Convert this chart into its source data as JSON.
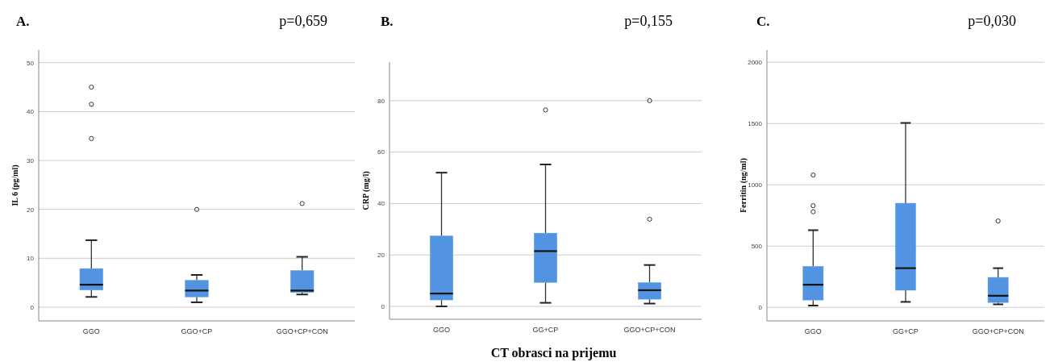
{
  "chart_data": [
    {
      "type": "box",
      "title": "A.",
      "annotations": [
        "p=0,659"
      ],
      "ylabel": "IL 6 (pg/ml)",
      "categories": [
        "GGO",
        "GGO+CP",
        "GGO+CP+CON"
      ],
      "ylim": [
        -2.8,
        52.6
      ],
      "yticks": [
        0,
        10,
        20,
        30,
        40,
        50
      ],
      "grid": "y",
      "color": "#5294e2",
      "boxes": [
        {
          "low": 2.1,
          "q1": 3.5,
          "median": 4.6,
          "q3": 7.9,
          "high": 13.7,
          "outliers": [
            34.5,
            41.5,
            45
          ]
        },
        {
          "low": 1.0,
          "q1": 2.1,
          "median": 3.4,
          "q3": 5.5,
          "high": 6.6,
          "outliers": [
            20
          ]
        },
        {
          "low": 2.6,
          "q1": 3.0,
          "median": 3.4,
          "q3": 7.5,
          "high": 10.3,
          "outliers": [
            21.2
          ]
        }
      ]
    },
    {
      "type": "box",
      "title": "B.",
      "annotations": [
        "p=0,155"
      ],
      "ylabel": "CRP (mg/l)",
      "xlabel": "CT obrasci na prijemu",
      "categories": [
        "GGO",
        "GG+CP",
        "GGO+CP+CON"
      ],
      "ylim": [
        -5,
        95
      ],
      "yticks": [
        0,
        20,
        40,
        60,
        80
      ],
      "grid": "y",
      "color": "#5294e2",
      "boxes": [
        {
          "low": 0,
          "q1": 2.5,
          "median": 5,
          "q3": 27.4,
          "high": 52
        },
        {
          "low": 1.4,
          "q1": 9.3,
          "median": 21.5,
          "q3": 28.5,
          "high": 55.2,
          "outliers": [
            76.4
          ]
        },
        {
          "low": 1.1,
          "q1": 2.8,
          "median": 6.3,
          "q3": 9.3,
          "high": 16.1,
          "outliers": [
            33.9,
            80
          ]
        }
      ]
    },
    {
      "type": "box",
      "title": "C.",
      "annotations": [
        "p=0,030"
      ],
      "ylabel": "Ferritin (ng/ml)",
      "categories": [
        "GGO",
        "GG+CP",
        "GGO+CP+CON"
      ],
      "ylim": [
        -110,
        2100
      ],
      "yticks": [
        0,
        500,
        1000,
        1500,
        2000
      ],
      "grid": "y",
      "color": "#5294e2",
      "boxes": [
        {
          "low": 15,
          "q1": 60,
          "median": 185,
          "q3": 335,
          "high": 630,
          "outliers": [
            780,
            830,
            1080
          ]
        },
        {
          "low": 45,
          "q1": 140,
          "median": 320,
          "q3": 850,
          "high": 1505
        },
        {
          "low": 25,
          "q1": 40,
          "median": 95,
          "q3": 245,
          "high": 320,
          "outliers": [
            705
          ]
        }
      ]
    }
  ]
}
